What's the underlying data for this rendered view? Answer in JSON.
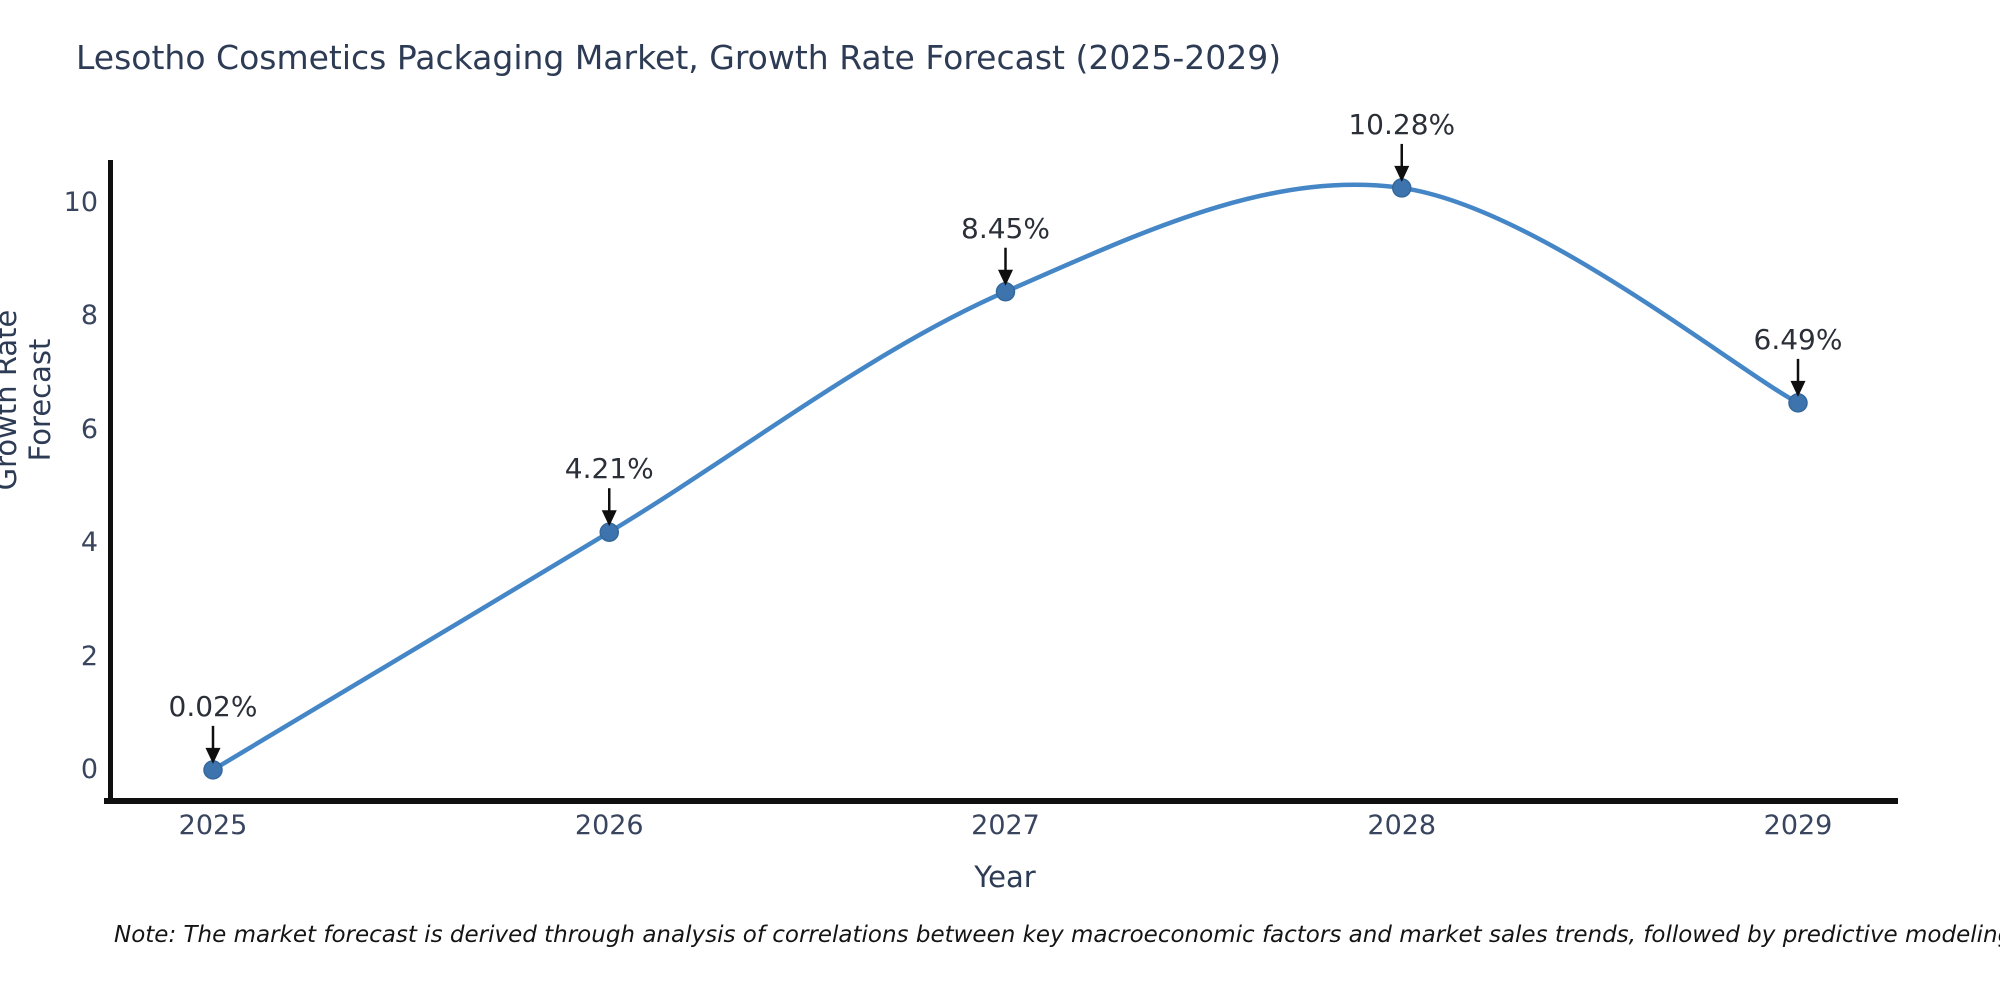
{
  "chart_data": {
    "type": "line",
    "title": "Lesotho Cosmetics Packaging Market, Growth Rate Forecast (2025-2029)",
    "xlabel": "Year",
    "ylabel": "Growth Rate Forecast",
    "x": [
      2025,
      2026,
      2027,
      2028,
      2029
    ],
    "series": [
      {
        "name": "Growth Rate Forecast",
        "values": [
          0.02,
          4.21,
          8.45,
          10.28,
          6.49
        ],
        "point_labels": [
          "0.02%",
          "4.21%",
          "8.45%",
          "10.28%",
          "6.49%"
        ]
      }
    ],
    "y_ticks": [
      0,
      2,
      4,
      6,
      8,
      10
    ],
    "ylim": [
      -0.55,
      11.3
    ],
    "grid": false,
    "legend": "none",
    "line_smoothing": "spline",
    "annotation_style": "value label with downward arrow to point",
    "colors": {
      "line": "#4486c6",
      "marker_fill": "#3d74ad",
      "marker_edge": "#35689c",
      "axis_line": "#0f0f0f",
      "arrow": "#0f0f0f",
      "title_text": "#2d3b55",
      "tick_text": "#39455e",
      "annotation_text": "#2b2f38"
    }
  },
  "footer": {
    "note": "Note: The market forecast is derived through analysis of correlations between key macroeconomic factors and market sales trends, followed by predictive modeling to project future sales"
  }
}
